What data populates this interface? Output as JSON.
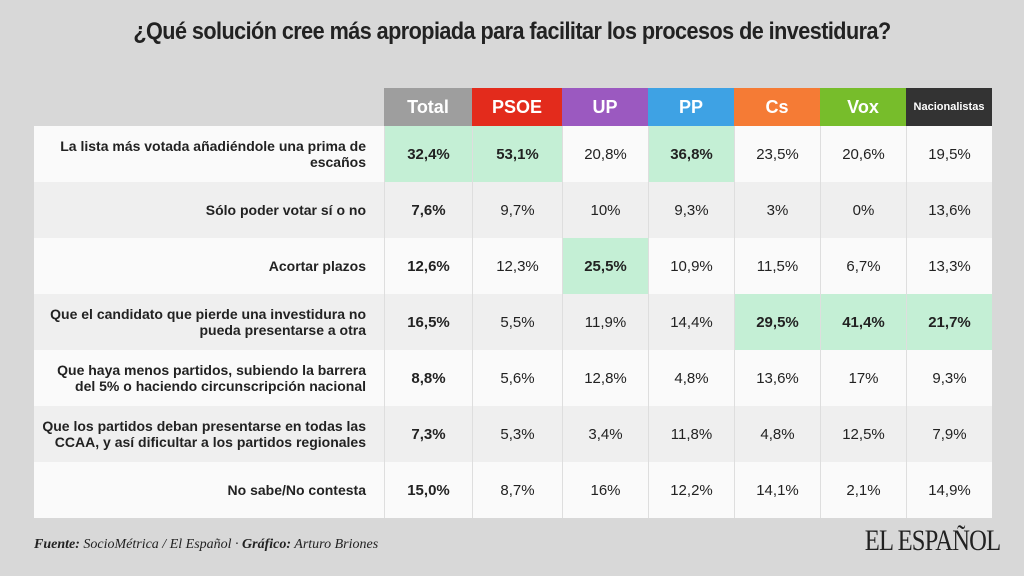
{
  "title": "¿Qué solución cree más apropiada para facilitar los procesos de investidura?",
  "chart_data": {
    "type": "table",
    "title": "¿Qué solución cree más apropiada para facilitar los procesos de investidura?",
    "columns": [
      {
        "name": "Total",
        "color": "#9e9e9e"
      },
      {
        "name": "PSOE",
        "color": "#e32b1c"
      },
      {
        "name": "UP",
        "color": "#9b59c0"
      },
      {
        "name": "PP",
        "color": "#3ea2e4"
      },
      {
        "name": "Cs",
        "color": "#f57b35"
      },
      {
        "name": "Vox",
        "color": "#77bd2b"
      },
      {
        "name": "Nacionalistas",
        "color": "#333333"
      }
    ],
    "rows": [
      {
        "label": "La lista más votada añadiéndole una prima de escaños",
        "values": [
          "32,4%",
          "53,1%",
          "20,8%",
          "36,8%",
          "23,5%",
          "20,6%",
          "19,5%"
        ],
        "highlight": [
          0,
          1,
          3
        ]
      },
      {
        "label": "Sólo poder votar sí o no",
        "values": [
          "7,6%",
          "9,7%",
          "10%",
          "9,3%",
          "3%",
          "0%",
          "13,6%"
        ],
        "highlight": []
      },
      {
        "label": "Acortar plazos",
        "values": [
          "12,6%",
          "12,3%",
          "25,5%",
          "10,9%",
          "11,5%",
          "6,7%",
          "13,3%"
        ],
        "highlight": [
          2
        ]
      },
      {
        "label": "Que el candidato que pierde una investidura no pueda presentarse a otra",
        "values": [
          "16,5%",
          "5,5%",
          "11,9%",
          "14,4%",
          "29,5%",
          "41,4%",
          "21,7%"
        ],
        "highlight": [
          4,
          5,
          6
        ]
      },
      {
        "label": "Que haya menos partidos, subiendo la barrera del 5% o haciendo circunscripción nacional",
        "values": [
          "8,8%",
          "5,6%",
          "12,8%",
          "4,8%",
          "13,6%",
          "17%",
          "9,3%"
        ],
        "highlight": []
      },
      {
        "label": "Que los partidos deban presentarse en todas las CCAA, y así dificultar a los partidos regionales",
        "values": [
          "7,3%",
          "5,3%",
          "3,4%",
          "11,8%",
          "4,8%",
          "12,5%",
          "7,9%"
        ],
        "highlight": []
      },
      {
        "label": "No sabe/No contesta",
        "values": [
          "15,0%",
          "8,7%",
          "16%",
          "12,2%",
          "14,1%",
          "2,1%",
          "14,9%"
        ],
        "highlight": []
      }
    ],
    "highlight_color": "#c4efd5"
  },
  "footer": {
    "source_label": "Fuente:",
    "source_text": " SocioMétrica / El Español · ",
    "graphic_label": "Gráfico:",
    "graphic_text": " Arturo Briones"
  },
  "logo": "EL ESPAÑOL"
}
